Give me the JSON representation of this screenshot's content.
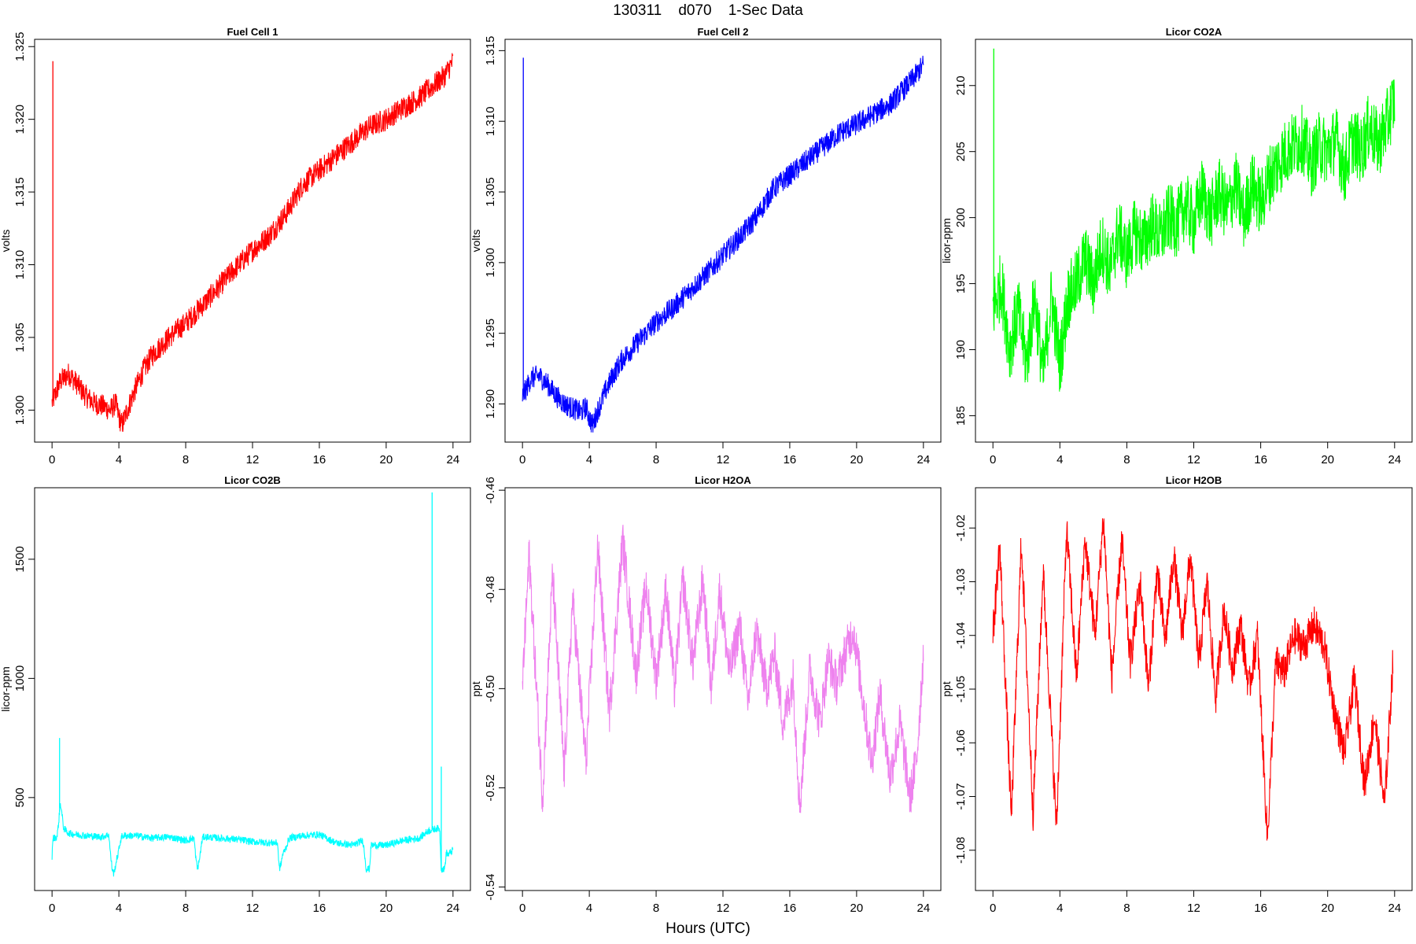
{
  "figure": {
    "title": "130311    d070    1-Sec Data",
    "xlabel": "Hours (UTC)"
  },
  "chart_data": [
    {
      "type": "line",
      "title": "Fuel Cell 1",
      "ylabel": "volts",
      "xlim": [
        0,
        24
      ],
      "ylim": [
        1.2978,
        1.3255
      ],
      "xticks": [
        0,
        4,
        8,
        12,
        16,
        20,
        24
      ],
      "yticks": [
        1.3,
        1.305,
        1.31,
        1.315,
        1.32,
        1.325
      ],
      "ytick_labels": [
        "1.300",
        "1.305",
        "1.310",
        "1.315",
        "1.320",
        "1.325"
      ],
      "color": "#ff0000",
      "spikes": [
        {
          "x": 0.05,
          "y": 1.324
        }
      ],
      "series": [
        {
          "x": [
            0,
            0.5,
            1,
            1.5,
            2,
            2.5,
            3,
            3.5,
            3.8,
            4,
            4.2,
            4.5,
            5,
            5.5,
            6,
            7,
            8,
            9,
            10,
            11,
            12,
            13,
            14,
            14.5,
            15,
            16,
            17,
            18,
            19,
            20,
            21,
            22,
            23,
            23.5,
            24
          ],
          "y": [
            1.3005,
            1.302,
            1.3025,
            1.3018,
            1.301,
            1.3005,
            1.3003,
            1.3,
            1.3005,
            1.2995,
            1.299,
            1.3,
            1.3015,
            1.3028,
            1.3038,
            1.305,
            1.306,
            1.3072,
            1.3085,
            1.3098,
            1.311,
            1.312,
            1.3135,
            1.3145,
            1.3155,
            1.3165,
            1.3175,
            1.3185,
            1.3195,
            1.32,
            1.3208,
            1.3215,
            1.3225,
            1.323,
            1.324
          ],
          "band": 0.0008
        }
      ]
    },
    {
      "type": "line",
      "title": "Fuel Cell 2",
      "ylabel": "volts",
      "xlim": [
        0,
        24
      ],
      "ylim": [
        1.2873,
        1.3158
      ],
      "xticks": [
        0,
        4,
        8,
        12,
        16,
        20,
        24
      ],
      "yticks": [
        1.29,
        1.295,
        1.3,
        1.305,
        1.31,
        1.315
      ],
      "ytick_labels": [
        "1.290",
        "1.295",
        "1.300",
        "1.305",
        "1.310",
        "1.315"
      ],
      "color": "#0000ff",
      "spikes": [
        {
          "x": 0.05,
          "y": 1.3145
        }
      ],
      "series": [
        {
          "x": [
            0,
            0.5,
            1,
            1.5,
            2,
            2.5,
            3,
            3.5,
            3.8,
            4,
            4.2,
            4.5,
            5,
            5.5,
            6,
            7,
            8,
            9,
            10,
            11,
            12,
            13,
            14,
            14.5,
            15,
            16,
            17,
            18,
            19,
            20,
            21,
            22,
            23,
            23.5,
            24
          ],
          "y": [
            1.2905,
            1.2918,
            1.292,
            1.2914,
            1.2906,
            1.29,
            1.2897,
            1.2894,
            1.2898,
            1.289,
            1.2885,
            1.2895,
            1.291,
            1.2922,
            1.2932,
            1.2945,
            1.2958,
            1.2968,
            1.298,
            1.2992,
            1.3005,
            1.3018,
            1.3032,
            1.3042,
            1.3052,
            1.3062,
            1.3072,
            1.3082,
            1.3092,
            1.3098,
            1.3105,
            1.3112,
            1.3125,
            1.3132,
            1.314
          ],
          "band": 0.0008
        }
      ]
    },
    {
      "type": "line",
      "title": "Licor CO2A",
      "ylabel": "licor-ppm",
      "xlim": [
        0,
        24
      ],
      "ylim": [
        183.0,
        213.5
      ],
      "xticks": [
        0,
        4,
        8,
        12,
        16,
        20,
        24
      ],
      "yticks": [
        185,
        190,
        195,
        200,
        205,
        210
      ],
      "ytick_labels": [
        "185",
        "190",
        "195",
        "200",
        "205",
        "210"
      ],
      "color": "#00ff00",
      "spikes": [
        {
          "x": 0.05,
          "y": 212.8
        }
      ],
      "series": [
        {
          "x": [
            0,
            0.5,
            1,
            1.5,
            2,
            2.5,
            3,
            3.5,
            4,
            4.5,
            5,
            5.5,
            6,
            6.5,
            7,
            7.5,
            8,
            8.5,
            9,
            9.5,
            10,
            10.5,
            11,
            11.5,
            12,
            12.5,
            13,
            13.5,
            14,
            14.5,
            15,
            15.5,
            16,
            16.5,
            17,
            17.5,
            18,
            18.5,
            19,
            19.5,
            20,
            20.5,
            21,
            21.5,
            22,
            22.5,
            23,
            23.5,
            24
          ],
          "y": [
            193,
            195,
            190,
            193,
            189,
            194,
            188,
            194,
            189,
            194,
            195,
            197,
            195,
            198,
            196,
            199,
            197,
            199,
            198,
            199.5,
            198.5,
            200,
            199.5,
            201,
            199.5,
            202,
            200,
            202,
            200.5,
            202.5,
            200,
            202.5,
            201,
            203,
            204,
            205,
            205.5,
            206,
            204,
            205.5,
            205,
            206,
            203.5,
            206,
            205,
            207,
            205.5,
            207,
            209
          ],
          "band": 2.6
        }
      ]
    },
    {
      "type": "line",
      "title": "Licor CO2B",
      "ylabel": "licor-ppm",
      "xlim": [
        0,
        24
      ],
      "ylim": [
        110,
        1800
      ],
      "xticks": [
        0,
        4,
        8,
        12,
        16,
        20,
        24
      ],
      "yticks": [
        500,
        1000,
        1500
      ],
      "ytick_labels": [
        "500",
        "1000",
        "1500"
      ],
      "color": "#00ffff",
      "spikes": [
        {
          "x": 0.45,
          "y": 750
        },
        {
          "x": 22.75,
          "y": 1780
        },
        {
          "x": 23.3,
          "y": 630
        }
      ],
      "series": [
        {
          "x": [
            0,
            0.05,
            0.1,
            0.3,
            0.4,
            0.5,
            0.7,
            1,
            2,
            3,
            3.4,
            3.5,
            3.6,
            3.7,
            3.9,
            4.0,
            4.1,
            4.2,
            5,
            6,
            7,
            8,
            8.5,
            8.6,
            8.7,
            8.8,
            9.0,
            9.1,
            10,
            11,
            12,
            13,
            13.5,
            13.6,
            13.7,
            13.8,
            14.0,
            14.2,
            15,
            16,
            17,
            18,
            18.6,
            18.7,
            18.8,
            19.0,
            19.1,
            20,
            21,
            22,
            22.5,
            23,
            23.2,
            23.3,
            23.5,
            23.6,
            23.7,
            24
          ],
          "y": [
            250,
            330,
            330,
            335,
            400,
            480,
            370,
            350,
            340,
            335,
            345,
            260,
            200,
            180,
            250,
            280,
            320,
            340,
            340,
            330,
            335,
            320,
            330,
            250,
            200,
            230,
            330,
            335,
            330,
            325,
            315,
            310,
            310,
            200,
            220,
            260,
            290,
            330,
            340,
            345,
            310,
            300,
            320,
            270,
            200,
            200,
            300,
            300,
            320,
            330,
            360,
            370,
            370,
            200,
            200,
            270,
            260,
            280
          ],
          "band": 15
        }
      ]
    },
    {
      "type": "line",
      "title": "Licor H2OA",
      "ylabel": "ppt",
      "xlim": [
        0,
        24
      ],
      "ylim": [
        -0.5407,
        -0.4595
      ],
      "xticks": [
        0,
        4,
        8,
        12,
        16,
        20,
        24
      ],
      "yticks": [
        -0.54,
        -0.52,
        -0.5,
        -0.48,
        -0.46
      ],
      "ytick_labels": [
        "-0.54",
        "-0.52",
        "-0.50",
        "-0.48",
        "-0.46"
      ],
      "color": "#ee82ee",
      "spikes": [],
      "series": [
        {
          "x": [
            0,
            0.4,
            1.2,
            1.8,
            2.5,
            3.0,
            3.8,
            4.5,
            5.2,
            6.0,
            6.8,
            7.4,
            8.0,
            8.6,
            9.1,
            9.6,
            10.2,
            10.8,
            11.3,
            11.8,
            12.4,
            13.0,
            13.5,
            14.0,
            14.6,
            15.1,
            15.6,
            16.2,
            16.6,
            17.2,
            17.8,
            18.3,
            18.8,
            19.3,
            19.8,
            20.3,
            20.9,
            21.4,
            22.0,
            22.6,
            23.2,
            23.6,
            24.0
          ],
          "y": [
            -0.499,
            -0.473,
            -0.522,
            -0.477,
            -0.517,
            -0.482,
            -0.515,
            -0.471,
            -0.505,
            -0.47,
            -0.497,
            -0.479,
            -0.498,
            -0.48,
            -0.5,
            -0.478,
            -0.495,
            -0.478,
            -0.5,
            -0.48,
            -0.497,
            -0.487,
            -0.503,
            -0.488,
            -0.5,
            -0.493,
            -0.507,
            -0.498,
            -0.524,
            -0.496,
            -0.507,
            -0.494,
            -0.499,
            -0.493,
            -0.488,
            -0.5,
            -0.515,
            -0.501,
            -0.518,
            -0.507,
            -0.522,
            -0.514,
            -0.493
          ],
          "band": 0.0045
        }
      ]
    },
    {
      "type": "line",
      "title": "Licor H2OB",
      "ylabel": "ppt",
      "xlim": [
        0,
        24
      ],
      "ylim": [
        -1.0875,
        -1.0125
      ],
      "xticks": [
        0,
        4,
        8,
        12,
        16,
        20,
        24
      ],
      "yticks": [
        -1.08,
        -1.07,
        -1.06,
        -1.05,
        -1.04,
        -1.03,
        -1.02
      ],
      "ytick_labels": [
        "-1.08",
        "-1.07",
        "-1.06",
        "-1.05",
        "-1.04",
        "-1.03",
        "-1.02"
      ],
      "color": "#ff0000",
      "spikes": [],
      "series": [
        {
          "x": [
            0,
            0.4,
            1.1,
            1.7,
            2.4,
            3.0,
            3.8,
            4.4,
            5.0,
            5.5,
            6.1,
            6.6,
            7.1,
            7.7,
            8.2,
            8.8,
            9.3,
            9.8,
            10.3,
            10.8,
            11.3,
            11.8,
            12.3,
            12.8,
            13.3,
            13.8,
            14.3,
            14.8,
            15.3,
            15.8,
            16.4,
            16.9,
            17.4,
            18.0,
            18.6,
            19.2,
            19.8,
            20.4,
            21.0,
            21.6,
            22.2,
            22.8,
            23.4,
            23.9
          ],
          "y": [
            -1.04,
            -1.023,
            -1.074,
            -1.022,
            -1.073,
            -1.028,
            -1.076,
            -1.02,
            -1.048,
            -1.022,
            -1.04,
            -1.018,
            -1.048,
            -1.022,
            -1.045,
            -1.03,
            -1.05,
            -1.028,
            -1.041,
            -1.025,
            -1.04,
            -1.025,
            -1.045,
            -1.03,
            -1.052,
            -1.035,
            -1.046,
            -1.038,
            -1.05,
            -1.04,
            -1.078,
            -1.045,
            -1.047,
            -1.04,
            -1.042,
            -1.038,
            -1.042,
            -1.054,
            -1.062,
            -1.048,
            -1.068,
            -1.055,
            -1.072,
            -1.045
          ],
          "band": 0.0035
        }
      ]
    }
  ]
}
